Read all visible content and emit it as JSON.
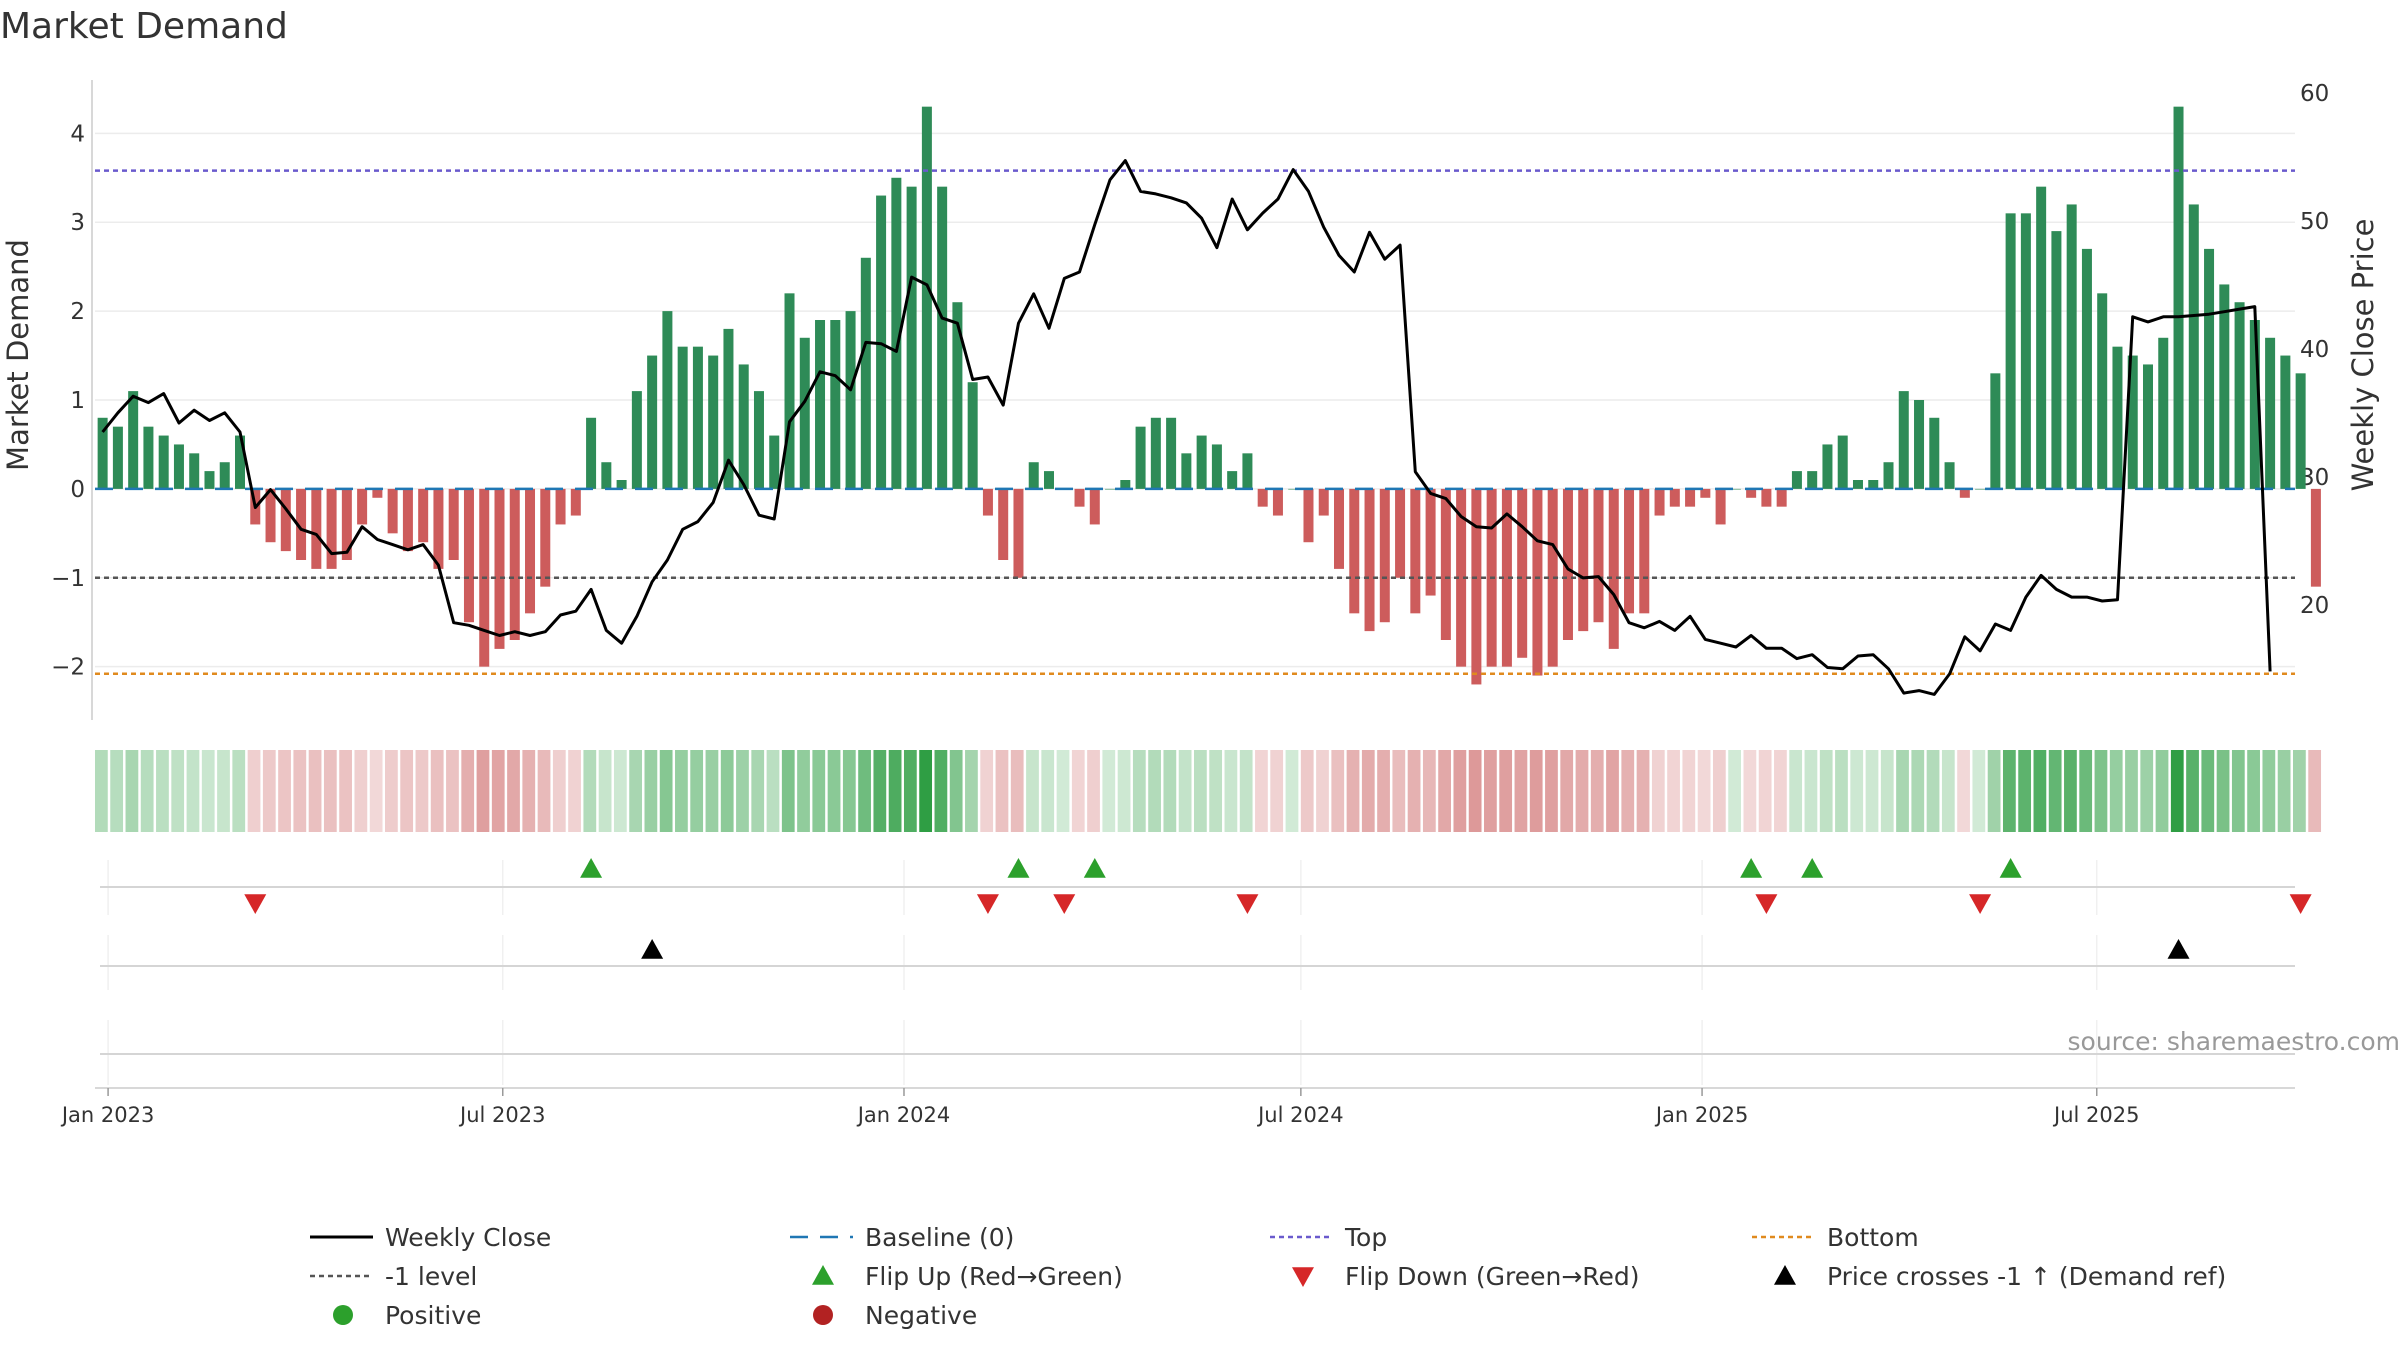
{
  "chart_data": {
    "type": "bar+line",
    "title": "Market Demand",
    "ylabel_left": "Market Demand",
    "ylabel_right": "Weekly Close Price",
    "source": "source: sharemaestro.com",
    "ylim_left": [
      -2.6,
      4.6
    ],
    "ylim_right": [
      11,
      61
    ],
    "yticks_left": [
      {
        "v": -2,
        "label": "−2"
      },
      {
        "v": -1,
        "label": "−1"
      },
      {
        "v": 0,
        "label": "0"
      },
      {
        "v": 1,
        "label": "1"
      },
      {
        "v": 2,
        "label": "2"
      },
      {
        "v": 3,
        "label": "3"
      },
      {
        "v": 4,
        "label": "4"
      }
    ],
    "yticks_right": [
      {
        "v": 20,
        "label": "20"
      },
      {
        "v": 30,
        "label": "30"
      },
      {
        "v": 40,
        "label": "40"
      },
      {
        "v": 50,
        "label": "50"
      },
      {
        "v": 60,
        "label": "60"
      }
    ],
    "x_start": "2022-12-26",
    "x_end": "2025-09-29",
    "week_start": "2022-12-26",
    "xticks": [
      {
        "date": "2023-01-01",
        "label": "Jan 2023"
      },
      {
        "date": "2023-07-01",
        "label": "Jul 2023"
      },
      {
        "date": "2024-01-01",
        "label": "Jan 2024"
      },
      {
        "date": "2024-07-01",
        "label": "Jul 2024"
      },
      {
        "date": "2025-01-01",
        "label": "Jan 2025"
      },
      {
        "date": "2025-07-01",
        "label": "Jul 2025"
      }
    ],
    "levels": {
      "top": 3.58,
      "minus_one": -1.0,
      "bottom": -2.08,
      "baseline": 0
    },
    "demand": [
      0.8,
      0.7,
      1.1,
      0.7,
      0.6,
      0.5,
      0.4,
      0.2,
      0.3,
      0.6,
      -0.4,
      -0.6,
      -0.7,
      -0.8,
      -0.9,
      -0.9,
      -0.8,
      -0.4,
      -0.1,
      -0.5,
      -0.7,
      -0.6,
      -0.9,
      -0.8,
      -1.5,
      -2.0,
      -1.8,
      -1.7,
      -1.4,
      -1.1,
      -0.4,
      -0.3,
      0.8,
      0.3,
      0.1,
      1.1,
      1.5,
      2.0,
      1.6,
      1.6,
      1.5,
      1.8,
      1.4,
      1.1,
      0.6,
      2.2,
      1.7,
      1.9,
      1.9,
      2.0,
      2.6,
      3.3,
      3.5,
      3.4,
      4.3,
      3.4,
      2.1,
      1.2,
      -0.3,
      -0.8,
      -1.0,
      0.3,
      0.2,
      0.0,
      -0.2,
      -0.4,
      0.0,
      0.1,
      0.7,
      0.8,
      0.8,
      0.4,
      0.6,
      0.5,
      0.2,
      0.4,
      -0.2,
      -0.3,
      0.0,
      -0.6,
      -0.3,
      -0.9,
      -1.4,
      -1.6,
      -1.5,
      -1.0,
      -1.4,
      -1.2,
      -1.7,
      -2.0,
      -2.2,
      -2.0,
      -2.0,
      -1.9,
      -2.1,
      -2.0,
      -1.7,
      -1.6,
      -1.5,
      -1.8,
      -1.4,
      -1.4,
      -0.3,
      -0.2,
      -0.2,
      -0.1,
      -0.4,
      0.0,
      -0.1,
      -0.2,
      -0.2,
      0.2,
      0.2,
      0.5,
      0.6,
      0.1,
      0.1,
      0.3,
      1.1,
      1.0,
      0.8,
      0.3,
      -0.1,
      0.0,
      1.3,
      3.1,
      3.1,
      3.4,
      2.9,
      3.2,
      2.7,
      2.2,
      1.6,
      1.5,
      1.4,
      1.7,
      4.3,
      3.2,
      2.7,
      2.3,
      2.1,
      1.9,
      1.7,
      1.5,
      1.3,
      -1.1
    ],
    "close": [
      33.5,
      35.0,
      36.3,
      35.8,
      36.5,
      34.2,
      35.2,
      34.4,
      35.0,
      33.5,
      27.6,
      29.0,
      27.5,
      25.9,
      25.5,
      24.0,
      24.1,
      26.1,
      25.1,
      24.7,
      24.3,
      24.7,
      23.1,
      18.6,
      18.4,
      18.0,
      17.6,
      17.9,
      17.6,
      17.9,
      19.2,
      19.5,
      21.2,
      18.0,
      17.0,
      19.1,
      21.8,
      23.5,
      25.9,
      26.5,
      28.0,
      31.3,
      29.4,
      27.0,
      26.7,
      34.3,
      35.9,
      38.2,
      37.9,
      36.8,
      40.5,
      40.4,
      39.8,
      45.6,
      45.0,
      42.4,
      42.0,
      37.6,
      37.8,
      35.6,
      42.0,
      44.3,
      41.6,
      45.5,
      46.0,
      49.7,
      53.2,
      54.7,
      52.3,
      52.1,
      51.8,
      51.4,
      50.2,
      47.9,
      51.7,
      49.3,
      50.6,
      51.7,
      54.0,
      52.3,
      49.5,
      47.3,
      46.0,
      49.1,
      47.0,
      48.1,
      30.4,
      28.7,
      28.3,
      26.9,
      26.1,
      26.0,
      27.1,
      26.1,
      25.0,
      24.7,
      22.8,
      22.1,
      22.2,
      20.8,
      18.6,
      18.2,
      18.7,
      18.0,
      19.1,
      17.3,
      17.0,
      16.7,
      17.6,
      16.6,
      16.6,
      15.8,
      16.1,
      15.1,
      15.0,
      16.0,
      16.1,
      15.0,
      13.1,
      13.3,
      13.0,
      14.6,
      17.5,
      16.4,
      18.5,
      18.0,
      20.6,
      22.3,
      21.2,
      20.6,
      20.6,
      20.3,
      20.4,
      42.5,
      42.1,
      42.5,
      42.5,
      42.6,
      42.7,
      42.9,
      43.1,
      43.3,
      14.8
    ],
    "flip_up_weeks": [
      32,
      60,
      65,
      108,
      112,
      125
    ],
    "flip_down_weeks": [
      10,
      58,
      63,
      75,
      109,
      123,
      144
    ],
    "price_cross_weeks": [
      36,
      136
    ],
    "legend": [
      {
        "key": "weekly_close",
        "label": "Weekly Close",
        "swatch": "line",
        "color": "#000000"
      },
      {
        "key": "baseline",
        "label": "Baseline (0)",
        "swatch": "dash",
        "color": "#1f77b4"
      },
      {
        "key": "top",
        "label": "Top",
        "swatch": "dot",
        "color": "#6a5acd"
      },
      {
        "key": "bottom",
        "label": "Bottom",
        "swatch": "dot",
        "color": "#e08a1e"
      },
      {
        "key": "minus_one",
        "label": "-1 level",
        "swatch": "dot",
        "color": "#555555"
      },
      {
        "key": "flip_up",
        "label": "Flip Up (Red→Green)",
        "swatch": "tri-up",
        "color": "#2ca02c"
      },
      {
        "key": "flip_down",
        "label": "Flip Down (Green→Red)",
        "swatch": "tri-down",
        "color": "#d62728"
      },
      {
        "key": "price_cross",
        "label": "Price crosses -1 ↑ (Demand ref)",
        "swatch": "tri-up",
        "color": "#000000"
      },
      {
        "key": "positive",
        "label": "Positive",
        "swatch": "circle",
        "color": "#2ca02c"
      },
      {
        "key": "negative",
        "label": "Negative",
        "swatch": "circle",
        "color": "#b22222"
      }
    ],
    "colors": {
      "positive_bar": "#2e8b57",
      "negative_bar": "#cd5c5c",
      "positive_heat": "#2f9e44",
      "negative_heat": "#c85a5a",
      "grid": "#ececec",
      "axis": "#cccccc"
    }
  }
}
